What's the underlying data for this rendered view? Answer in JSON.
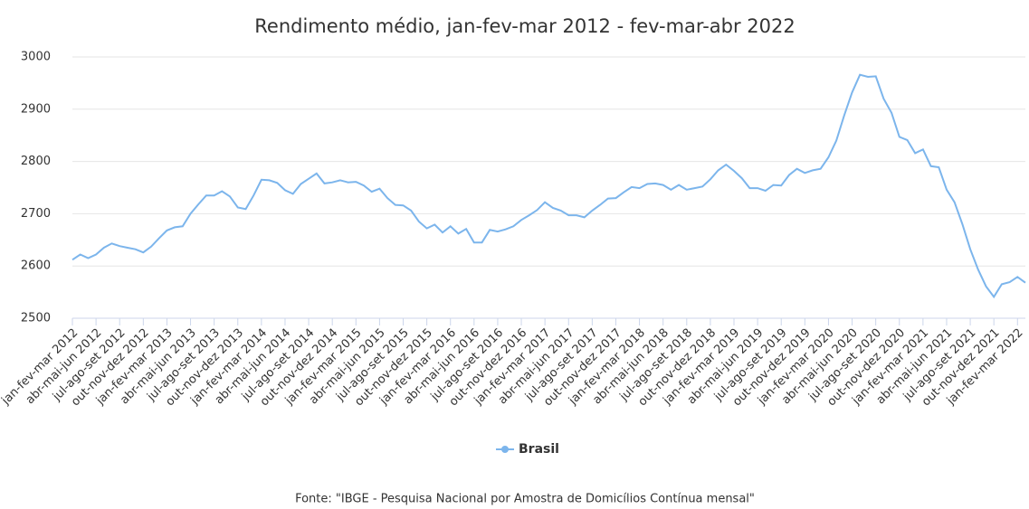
{
  "chart_data": {
    "type": "line",
    "title": "Rendimento médio, jan-fev-mar 2012 - fev-mar-abr 2022",
    "source": "Fonte: \"IBGE - Pesquisa Nacional por Amostra de Domicílios Contínua mensal\"",
    "categories": [
      "jan-fev-mar 2012",
      null,
      null,
      "abr-mai-jun 2012",
      null,
      null,
      "jul-ago-set 2012",
      null,
      null,
      "out-nov-dez 2012",
      null,
      null,
      "jan-fev-mar 2013",
      null,
      null,
      "abr-mai-jun 2013",
      null,
      null,
      "jul-ago-set 2013",
      null,
      null,
      "out-nov-dez 2013",
      null,
      null,
      "jan-fev-mar 2014",
      null,
      null,
      "abr-mai-jun 2014",
      null,
      null,
      "jul-ago-set 2014",
      null,
      null,
      "out-nov-dez 2014",
      null,
      null,
      "jan-fev-mar 2015",
      null,
      null,
      "abr-mai-jun 2015",
      null,
      null,
      "jul-ago-set 2015",
      null,
      null,
      "out-nov-dez 2015",
      null,
      null,
      "jan-fev-mar 2016",
      null,
      null,
      "abr-mai-jun 2016",
      null,
      null,
      "jul-ago-set 2016",
      null,
      null,
      "out-nov-dez 2016",
      null,
      null,
      "jan-fev-mar 2017",
      null,
      null,
      "abr-mai-jun 2017",
      null,
      null,
      "jul-ago-set 2017",
      null,
      null,
      "out-nov-dez 2017",
      null,
      null,
      "jan-fev-mar 2018",
      null,
      null,
      "abr-mai-jun 2018",
      null,
      null,
      "jul-ago-set 2018",
      null,
      null,
      "out-nov-dez 2018",
      null,
      null,
      "jan-fev-mar 2019",
      null,
      null,
      "abr-mai-jun 2019",
      null,
      null,
      "jul-ago-set 2019",
      null,
      null,
      "out-nov-dez 2019",
      null,
      null,
      "jan-fev-mar 2020",
      null,
      null,
      "abr-mai-jun 2020",
      null,
      null,
      "jul-ago-set 2020",
      null,
      null,
      "out-nov-dez 2020",
      null,
      null,
      "jan-fev-mar 2021",
      null,
      null,
      "abr-mai-jun 2021",
      null,
      null,
      "jul-ago-set 2021",
      null,
      null,
      "out-nov-dez 2021",
      null,
      null,
      "jan-fev-mar 2022",
      null
    ],
    "series": [
      {
        "name": "Brasil",
        "color": "#7cb5ec",
        "values": [
          2612,
          2622,
          2615,
          2622,
          2635,
          2643,
          2638,
          2635,
          2632,
          2626,
          2637,
          2653,
          2668,
          2674,
          2676,
          2700,
          2718,
          2735,
          2735,
          2743,
          2733,
          2712,
          2709,
          2735,
          2765,
          2764,
          2759,
          2745,
          2738,
          2757,
          2767,
          2777,
          2758,
          2760,
          2764,
          2760,
          2761,
          2754,
          2742,
          2748,
          2730,
          2717,
          2716,
          2706,
          2685,
          2672,
          2679,
          2664,
          2676,
          2662,
          2671,
          2645,
          2645,
          2669,
          2666,
          2670,
          2676,
          2688,
          2697,
          2707,
          2722,
          2711,
          2706,
          2697,
          2697,
          2693,
          2706,
          2717,
          2729,
          2730,
          2741,
          2751,
          2749,
          2757,
          2758,
          2755,
          2746,
          2755,
          2746,
          2749,
          2752,
          2766,
          2783,
          2794,
          2782,
          2768,
          2749,
          2749,
          2744,
          2755,
          2754,
          2774,
          2786,
          2778,
          2783,
          2786,
          2808,
          2840,
          2888,
          2932,
          2966,
          2962,
          2963,
          2920,
          2893,
          2847,
          2841,
          2816,
          2823,
          2791,
          2789,
          2746,
          2722,
          2680,
          2632,
          2593,
          2561,
          2541,
          2565,
          2569,
          2579,
          2568
        ]
      }
    ],
    "ylim": [
      2500,
      3000
    ],
    "yticks": [
      2500,
      2600,
      2700,
      2800,
      2900,
      3000
    ],
    "grid": true
  }
}
